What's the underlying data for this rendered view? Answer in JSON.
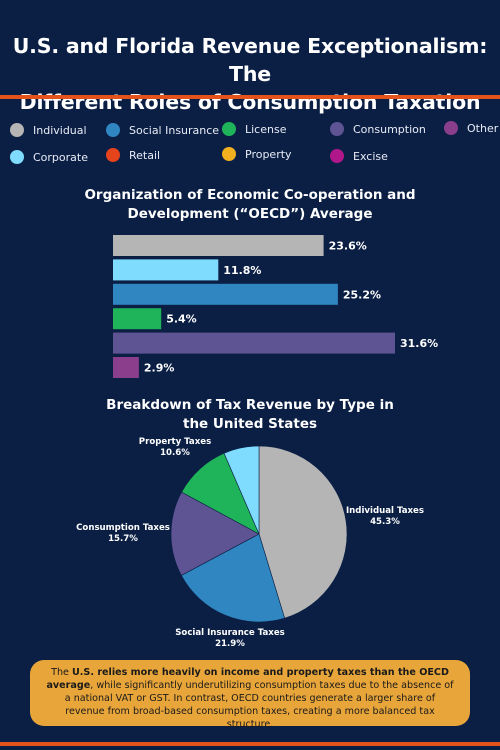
{
  "title_line1": "U.S. and Florida Revenue Exceptionalism: The",
  "title_line2": "Different Roles of Consumption Taxation",
  "legend": [
    {
      "label": "Individual",
      "color": "#b5b5b5"
    },
    {
      "label": "Social Insurance",
      "color": "#2f86c0"
    },
    {
      "label": "License",
      "color": "#1fb45a"
    },
    {
      "label": "Consumption",
      "color": "#5e5393"
    },
    {
      "label": "Other",
      "color": "#8a3e8c"
    },
    {
      "label": "Corporate",
      "color": "#7fdcff"
    },
    {
      "label": "Retail",
      "color": "#e4431c"
    },
    {
      "label": "Property",
      "color": "#f0b020"
    },
    {
      "label": "Excise",
      "color": "#b0178a"
    }
  ],
  "chart_data": [
    {
      "type": "bar",
      "title_line1": "Organization of Economic Co-operation and",
      "title_line2": "Development (“OECD”) Average",
      "orientation": "horizontal",
      "categories": [
        "Individual",
        "Corporate",
        "Social Insurance",
        "License",
        "Consumption",
        "Other"
      ],
      "values": [
        23.6,
        11.8,
        25.2,
        5.4,
        31.6,
        2.9
      ],
      "labels": [
        "23.6%",
        "11.8%",
        "25.2%",
        "5.4%",
        "31.6%",
        "2.9%"
      ],
      "colors": [
        "#b5b5b5",
        "#7fdcff",
        "#2f86c0",
        "#1fb45a",
        "#5e5393",
        "#8a3e8c"
      ],
      "xlim": [
        0,
        31.6
      ]
    },
    {
      "type": "pie",
      "title_line1": "Breakdown of Tax Revenue by Type in",
      "title_line2": "the United States",
      "slices": [
        {
          "name": "Individual Taxes",
          "value": 45.3,
          "label": "45.3%",
          "color": "#b5b5b5"
        },
        {
          "name": "Social Insurance Taxes",
          "value": 21.9,
          "label": "21.9%",
          "color": "#2f86c0"
        },
        {
          "name": "Consumption Taxes",
          "value": 15.7,
          "label": "15.7%",
          "color": "#5e5393"
        },
        {
          "name": "Property Taxes",
          "value": 10.6,
          "label": "10.6%",
          "color": "#1fb45a"
        },
        {
          "name": "",
          "value": 6.5,
          "label": "",
          "color": "#7fdcff"
        }
      ]
    }
  ],
  "note": {
    "prefix": "The ",
    "bold": "U.S. relies more heavily on income and property taxes than the OECD average",
    "rest": ", while significantly underutilizing consumption taxes due to the absence of a national VAT or GST. In contrast, OECD countries generate a larger share of revenue from broad-based consumption taxes, creating a more balanced tax structure."
  }
}
